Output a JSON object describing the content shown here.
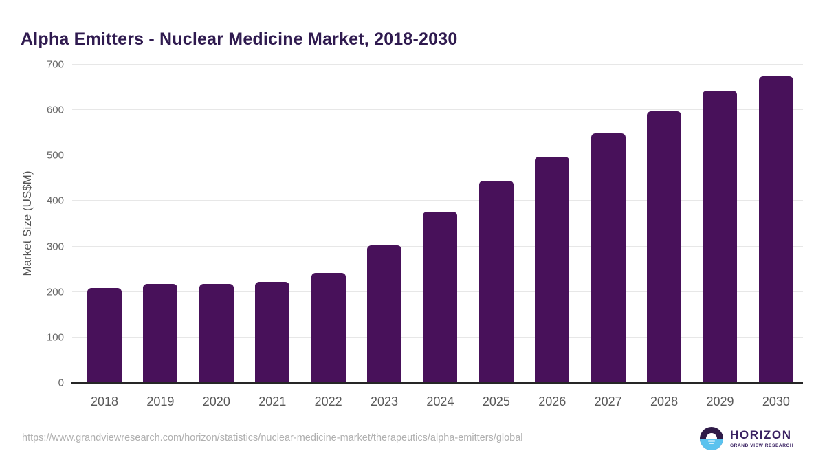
{
  "chart_data": {
    "type": "bar",
    "title": "Alpha Emitters - Nuclear Medicine Market, 2018-2030",
    "categories": [
      "2018",
      "2019",
      "2020",
      "2021",
      "2022",
      "2023",
      "2024",
      "2025",
      "2026",
      "2027",
      "2028",
      "2029",
      "2030"
    ],
    "values": [
      208,
      218,
      217,
      223,
      242,
      302,
      377,
      445,
      497,
      549,
      597,
      642,
      674
    ],
    "xlabel": "",
    "ylabel": "Market Size (US$M)",
    "ylim": [
      0,
      700
    ],
    "yticks": [
      0,
      100,
      200,
      300,
      400,
      500,
      600,
      700
    ],
    "grid": true,
    "legend": "none",
    "bar_color": "#48115a"
  },
  "footer": {
    "source_url": "https://www.grandviewresearch.com/horizon/statistics/nuclear-medicine-market/therapeutics/alpha-emitters/global",
    "logo": {
      "name": "HORIZON",
      "subtitle": "GRAND VIEW RESEARCH"
    }
  },
  "colors": {
    "title": "#2f1a4f",
    "bar": "#48115a",
    "ylabel_text": "#555555",
    "tick_text": "#666666",
    "xtick_text": "#595959",
    "gridline": "#e7e7e7",
    "baseline": "#262626",
    "source_text": "#b0b0b0",
    "logo_dark": "#3b2363",
    "logo_circle": "#2e1a47",
    "logo_blue": "#5bc2ee"
  }
}
